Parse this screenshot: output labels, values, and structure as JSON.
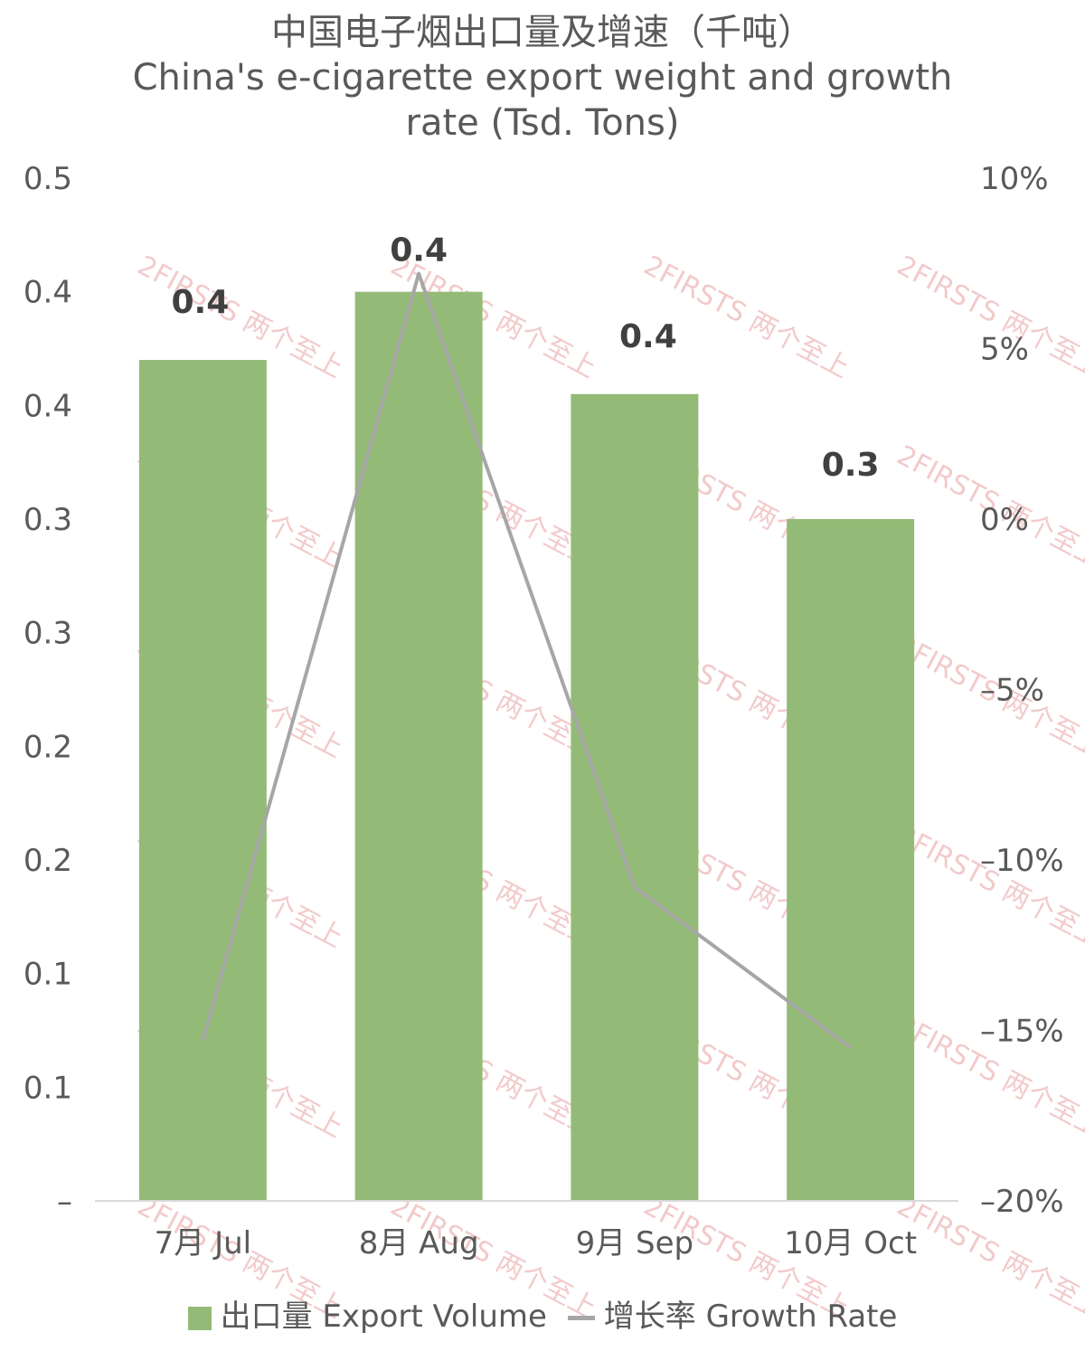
{
  "titles": {
    "cn": "中国电子烟出口量及增速（千吨）",
    "en_line1": "China's e-cigarette export weight and growth",
    "en_line2": "rate (Tsd. Tons)"
  },
  "colors": {
    "bar": "#93bb77",
    "line": "#a6a6a6",
    "axis": "#d9d9d9",
    "watermark": "#e8a0a0"
  },
  "watermark_text": "2FIRSTS 两个至上",
  "chart_data": {
    "type": "bar",
    "categories": [
      "7月 Jul",
      "8月 Aug",
      "9月 Sep",
      "10月 Oct"
    ],
    "series": [
      {
        "name": "出口量 Export Volume",
        "type": "bar",
        "axis": "left",
        "values": [
          0.37,
          0.4,
          0.355,
          0.3
        ],
        "labels": [
          "0.4",
          "0.4",
          "0.4",
          "0.3"
        ]
      },
      {
        "name": "增长率 Growth Rate",
        "type": "line",
        "axis": "right",
        "values": [
          -15.3,
          7.2,
          -10.8,
          -15.5
        ]
      }
    ],
    "y_left": {
      "range": [
        0,
        0.45
      ],
      "tick_labels": [
        "–",
        "0.1",
        "0.1",
        "0.2",
        "0.2",
        "0.3",
        "0.3",
        "0.4",
        "0.4",
        "0.5"
      ]
    },
    "y_right": {
      "range": [
        -20,
        10
      ],
      "unit": "%",
      "tick_labels": [
        "–20%",
        "–15%",
        "–10%",
        "–5%",
        "0%",
        "5%",
        "10%"
      ]
    },
    "grid": false,
    "legend": "bottom"
  }
}
